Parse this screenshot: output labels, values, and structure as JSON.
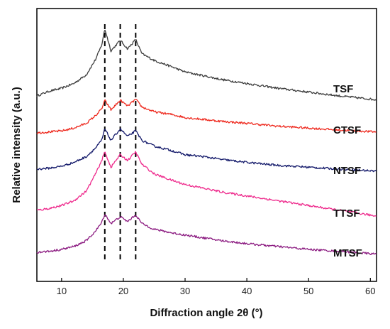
{
  "chart_data": {
    "type": "line",
    "xlabel": "Diffraction angle 2θ (°)",
    "ylabel": "Relative intensity (a.u.)",
    "xlim": [
      6,
      61
    ],
    "xticks": [
      "10",
      "20",
      "30",
      "40",
      "50",
      "60"
    ],
    "yticks": "none",
    "grid": false,
    "legend": "series labels drawn at right end of each curve",
    "reference_lines": [
      17.0,
      19.5,
      22.0
    ],
    "series": [
      {
        "name": "TSF",
        "color": "#3d3d3d",
        "x": [
          6,
          8,
          10,
          12,
          14,
          15.5,
          16.5,
          17,
          18,
          19.5,
          20.7,
          22,
          23,
          25,
          28,
          30,
          33,
          36,
          40,
          45,
          50,
          55,
          61
        ],
        "y": [
          0.0,
          0.05,
          0.08,
          0.13,
          0.22,
          0.38,
          0.53,
          0.7,
          0.47,
          0.58,
          0.49,
          0.59,
          0.44,
          0.37,
          0.3,
          0.25,
          0.21,
          0.17,
          0.13,
          0.08,
          0.04,
          0.0,
          -0.04
        ]
      },
      {
        "name": "CTSF",
        "color": "#ee2a1f",
        "x": [
          6,
          8,
          10,
          12,
          14,
          15.5,
          16.5,
          17,
          18,
          19.5,
          20.7,
          22,
          23,
          25,
          28,
          30,
          33,
          36,
          40,
          45,
          50,
          55,
          61
        ],
        "y": [
          0.0,
          0.01,
          0.02,
          0.05,
          0.1,
          0.18,
          0.25,
          0.34,
          0.24,
          0.34,
          0.28,
          0.35,
          0.27,
          0.22,
          0.19,
          0.16,
          0.14,
          0.12,
          0.1,
          0.07,
          0.05,
          0.03,
          0.01
        ]
      },
      {
        "name": "NTSF",
        "color": "#13196a",
        "x": [
          6,
          8,
          10,
          12,
          14,
          15.5,
          16.5,
          17,
          18,
          19.5,
          20.7,
          22,
          23,
          25,
          28,
          30,
          33,
          36,
          40,
          45,
          50,
          55,
          61
        ],
        "y": [
          0.0,
          0.01,
          0.03,
          0.07,
          0.13,
          0.22,
          0.3,
          0.42,
          0.3,
          0.42,
          0.34,
          0.4,
          0.3,
          0.24,
          0.19,
          0.15,
          0.13,
          0.1,
          0.07,
          0.04,
          0.02,
          0.0,
          -0.02
        ]
      },
      {
        "name": "TTSF",
        "color": "#ee2a8c",
        "x": [
          6,
          8,
          10,
          12,
          14,
          15.5,
          16.5,
          17,
          18,
          19.5,
          20.7,
          22,
          23,
          25,
          28,
          30,
          33,
          36,
          40,
          45,
          50,
          55,
          61
        ],
        "y": [
          0.0,
          0.02,
          0.05,
          0.1,
          0.2,
          0.38,
          0.52,
          0.61,
          0.45,
          0.58,
          0.52,
          0.61,
          0.48,
          0.38,
          0.31,
          0.27,
          0.23,
          0.19,
          0.15,
          0.1,
          0.05,
          0.0,
          -0.06
        ]
      },
      {
        "name": "MTSF",
        "color": "#8b1a80",
        "x": [
          6,
          8,
          10,
          12,
          14,
          15.5,
          16.5,
          17,
          18,
          19.5,
          20.7,
          22,
          23,
          25,
          28,
          30,
          33,
          36,
          40,
          45,
          50,
          55,
          61
        ],
        "y": [
          0.0,
          0.01,
          0.03,
          0.06,
          0.12,
          0.22,
          0.31,
          0.4,
          0.3,
          0.37,
          0.32,
          0.39,
          0.3,
          0.24,
          0.2,
          0.18,
          0.15,
          0.12,
          0.09,
          0.06,
          0.03,
          0.01,
          -0.02
        ]
      }
    ]
  }
}
